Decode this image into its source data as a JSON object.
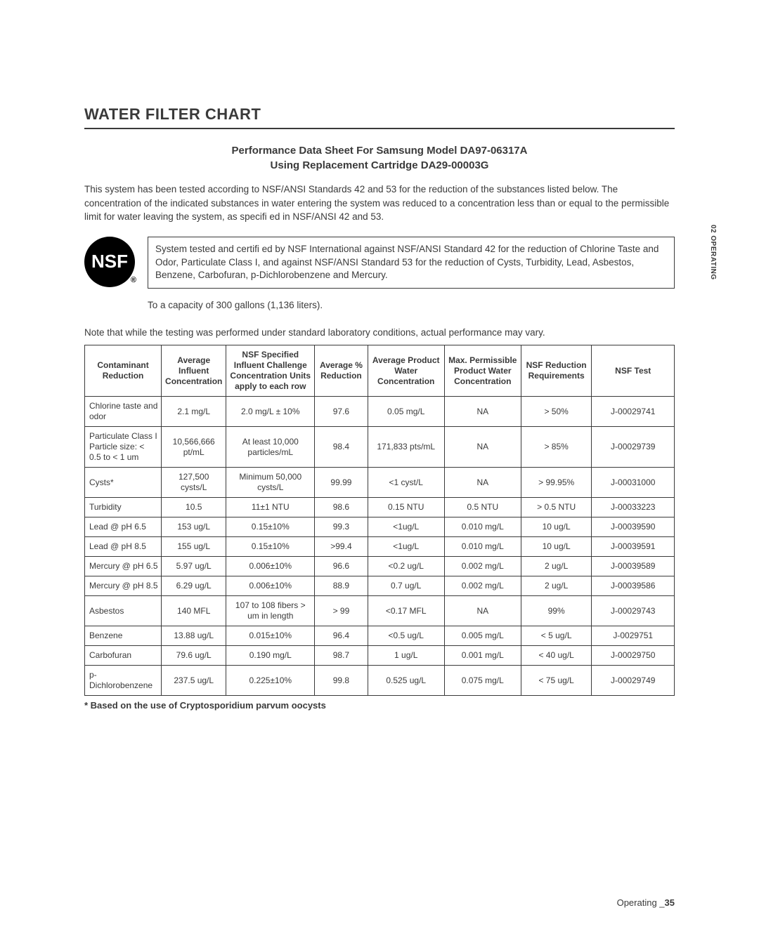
{
  "title": "WATER FILTER CHART",
  "subtitle_line1": "Performance Data Sheet For Samsung Model DA97-06317A",
  "subtitle_line2": "Using Replacement Cartridge DA29-00003G",
  "intro": "This system has been tested according to NSF/ANSI Standards 42 and 53 for the reduction of the substances listed below. The concentration of the indicated substances in water entering the system was reduced to a concentration less than or equal to the permissible limit for water leaving the system, as specifi ed in NSF/ANSI 42 and 53.",
  "nsf_logo_text": "NSF",
  "nsf_box": "System tested and certifi ed by NSF International against NSF/ANSI Standard 42 for the reduction of Chlorine Taste and Odor, Particulate Class I, and against NSF/ANSI Standard 53 for the reduction of Cysts, Turbidity, Lead, Asbestos, Benzene, Carbofuran, p-Dichlorobenzene and Mercury.",
  "capacity_line": "To a capacity of 300 gallons (1,136 liters).",
  "note_line": "Note that while the testing was performed under standard laboratory conditions, actual performance may vary.",
  "columns": [
    "Contaminant Reduction",
    "Average Influent Concentration",
    "NSF Specified Influent Challenge Concentration Units apply to each row",
    "Average % Reduction",
    "Average Product Water Concentration",
    "Max. Permissible Product Water Concentration",
    "NSF Reduction Requirements",
    "NSF Test"
  ],
  "rows": [
    [
      "Chlorine taste and odor",
      "2.1 mg/L",
      "2.0 mg/L ± 10%",
      "97.6",
      "0.05 mg/L",
      "NA",
      "> 50%",
      "J-00029741"
    ],
    [
      "Particulate Class I Particle size: < 0.5 to < 1 um",
      "10,566,666 pt/mL",
      "At least 10,000 particles/mL",
      "98.4",
      "171,833 pts/mL",
      "NA",
      "> 85%",
      "J-00029739"
    ],
    [
      "Cysts*",
      "127,500 cysts/L",
      "Minimum 50,000 cysts/L",
      "99.99",
      "<1 cyst/L",
      "NA",
      "> 99.95%",
      "J-00031000"
    ],
    [
      "Turbidity",
      "10.5",
      "11±1 NTU",
      "98.6",
      "0.15 NTU",
      "0.5 NTU",
      "> 0.5 NTU",
      "J-00033223"
    ],
    [
      "Lead @ pH 6.5",
      "153 ug/L",
      "0.15±10%",
      "99.3",
      "<1ug/L",
      "0.010 mg/L",
      "10 ug/L",
      "J-00039590"
    ],
    [
      "Lead @ pH 8.5",
      "155 ug/L",
      "0.15±10%",
      ">99.4",
      "<1ug/L",
      "0.010 mg/L",
      "10 ug/L",
      "J-00039591"
    ],
    [
      "Mercury @ pH 6.5",
      "5.97 ug/L",
      "0.006±10%",
      "96.6",
      "<0.2 ug/L",
      "0.002 mg/L",
      "2 ug/L",
      "J-00039589"
    ],
    [
      "Mercury @ pH 8.5",
      "6.29 ug/L",
      "0.006±10%",
      "88.9",
      "0.7 ug/L",
      "0.002 mg/L",
      "2 ug/L",
      "J-00039586"
    ],
    [
      "Asbestos",
      "140 MFL",
      "107 to 108 fibers > um in length",
      "> 99",
      "<0.17 MFL",
      "NA",
      "99%",
      "J-00029743"
    ],
    [
      "Benzene",
      "13.88 ug/L",
      "0.015±10%",
      "96.4",
      "<0.5 ug/L",
      "0.005 mg/L",
      "< 5 ug/L",
      "J-0029751"
    ],
    [
      "Carbofuran",
      "79.6 ug/L",
      "0.190 mg/L",
      "98.7",
      "1 ug/L",
      "0.001 mg/L",
      "< 40 ug/L",
      "J-00029750"
    ],
    [
      "p-Dichlorobenzene",
      "237.5 ug/L",
      "0.225±10%",
      "99.8",
      "0.525 ug/L",
      "0.075 mg/L",
      "< 75 ug/L",
      "J-00029749"
    ]
  ],
  "col_widths": [
    "13%",
    "11%",
    "15%",
    "9%",
    "13%",
    "13%",
    "12%",
    "14%"
  ],
  "footnote": "* Based on the use of Cryptosporidium parvum oocysts",
  "side_tab": "02 OPERATING",
  "footer_label": "Operating _",
  "footer_page": "35"
}
